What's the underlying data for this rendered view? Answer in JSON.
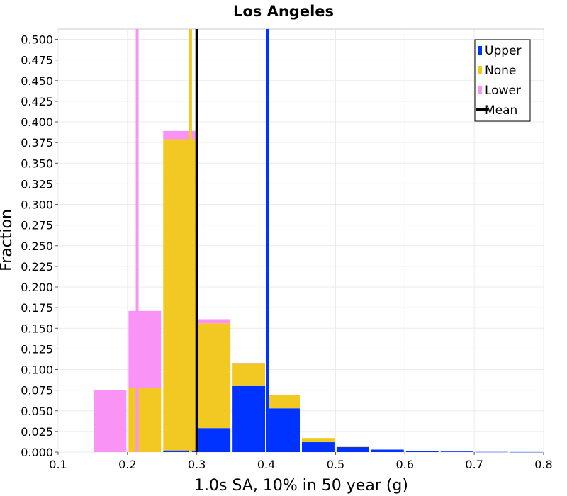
{
  "chart_data": {
    "type": "bar",
    "stacked": true,
    "title": "Los Angeles",
    "xlabel": "1.0s SA, 10% in 50 year (g)",
    "ylabel": "Fraction",
    "xlim": [
      0.1,
      0.8
    ],
    "ylim": [
      0.0,
      0.5125
    ],
    "xticks": [
      "0.1",
      "0.2",
      "0.3",
      "0.4",
      "0.5",
      "0.6",
      "0.7",
      "0.8"
    ],
    "yticks": [
      "0.000",
      "0.025",
      "0.050",
      "0.075",
      "0.100",
      "0.125",
      "0.150",
      "0.175",
      "0.200",
      "0.225",
      "0.250",
      "0.275",
      "0.300",
      "0.325",
      "0.350",
      "0.375",
      "0.400",
      "0.425",
      "0.450",
      "0.475",
      "0.500"
    ],
    "grid": true,
    "legend_position": "top-right",
    "bin_width": 0.05,
    "bin_starts": [
      0.15,
      0.2,
      0.25,
      0.3,
      0.35,
      0.4,
      0.45,
      0.5,
      0.55,
      0.6,
      0.65,
      0.7,
      0.75
    ],
    "series": [
      {
        "name": "Upper",
        "color": "#0033ff",
        "values": [
          0.0,
          0.0,
          0.002,
          0.029,
          0.08,
          0.053,
          0.012,
          0.006,
          0.003,
          0.0015,
          0.0007,
          0.0002,
          0.0001
        ]
      },
      {
        "name": "None",
        "color": "#f2c822",
        "values": [
          0.0,
          0.078,
          0.377,
          0.127,
          0.027,
          0.016,
          0.005,
          0.0005,
          0.0,
          0.0,
          0.0,
          0.0,
          0.0
        ]
      },
      {
        "name": "Lower",
        "color": "#f993f6",
        "values": [
          0.075,
          0.093,
          0.01,
          0.005,
          0.001,
          0.0,
          0.0,
          0.0,
          0.0,
          0.0,
          0.0,
          0.0,
          0.0
        ]
      }
    ],
    "mean_lines": [
      {
        "series": "Lower",
        "x": 0.214,
        "color": "#f993f6"
      },
      {
        "series": "None",
        "x": 0.291,
        "color": "#f2c822"
      },
      {
        "series": "Mean",
        "x": 0.3,
        "color": "#000000"
      },
      {
        "series": "Upper",
        "x": 0.402,
        "color": "#0033ff"
      }
    ],
    "legend": [
      {
        "name": "Upper",
        "color": "#0033ff"
      },
      {
        "name": "None",
        "color": "#f2c822"
      },
      {
        "name": "Lower",
        "color": "#f993f6"
      },
      {
        "name": "Mean",
        "color": "#000000"
      }
    ]
  }
}
